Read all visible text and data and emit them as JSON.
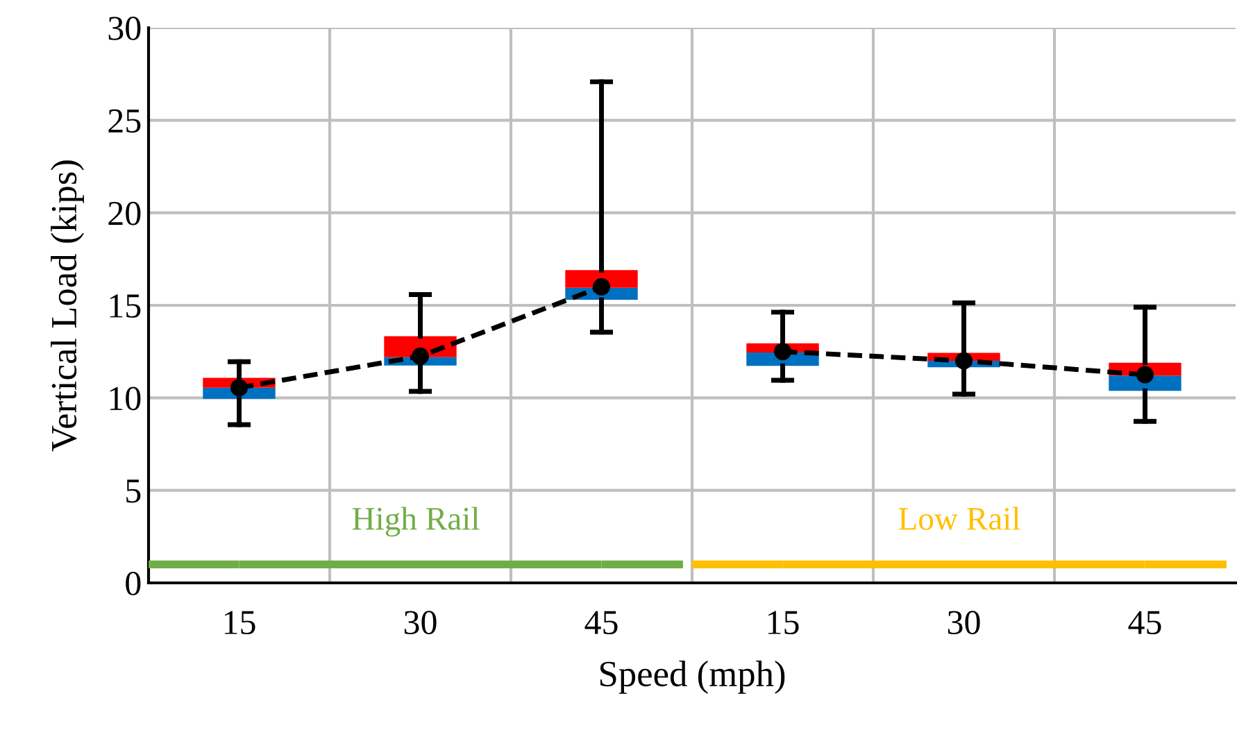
{
  "chart_data": {
    "type": "box",
    "xlabel": "Speed (mph)",
    "ylabel": "Vertical Load (kips)",
    "categories": [
      "15",
      "30",
      "45",
      "15",
      "30",
      "45"
    ],
    "boxes": [
      {
        "low": 8.55,
        "q1": 9.95,
        "median": 10.55,
        "q3": 11.08,
        "high": 11.95
      },
      {
        "low": 10.35,
        "q1": 11.75,
        "median": 12.2,
        "q3": 13.33,
        "high": 15.58
      },
      {
        "low": 13.55,
        "q1": 15.3,
        "median": 15.95,
        "q3": 16.9,
        "high": 27.08
      },
      {
        "low": 10.95,
        "q1": 11.73,
        "median": 12.45,
        "q3": 12.95,
        "high": 14.63
      },
      {
        "low": 10.2,
        "q1": 11.65,
        "median": 12.0,
        "q3": 12.43,
        "high": 15.13
      },
      {
        "low": 8.73,
        "q1": 10.38,
        "median": 11.2,
        "q3": 11.9,
        "high": 14.9
      }
    ],
    "colors": [
      "#0070c0",
      "#0070c0",
      "#0070c0",
      "#0070c0",
      "#0070c0",
      "#0070c0"
    ],
    "color": "#ff0000",
    "series": [
      {
        "type": "line",
        "color": "#000000",
        "line_style": "dashed",
        "marker": "circle",
        "values": [
          10.55,
          12.25,
          16.0,
          null,
          null,
          null
        ]
      },
      {
        "type": "line",
        "color": "#000000",
        "line_style": "dashed",
        "marker": "circle",
        "values": [
          null,
          null,
          null,
          12.5,
          12.0,
          11.25
        ]
      },
      {
        "type": "line",
        "name": "High Rail",
        "color": "#70ad47",
        "line_style": "solid",
        "marker": "none",
        "values": [
          1,
          1,
          1,
          null,
          null,
          null
        ]
      },
      {
        "type": "line",
        "name": "Low Rail",
        "color": "#ffc000",
        "line_style": "solid",
        "marker": "none",
        "values": [
          null,
          null,
          null,
          1,
          1,
          1
        ]
      }
    ],
    "ylim": [
      0,
      30
    ],
    "yticks": [
      0,
      5,
      10,
      15,
      20,
      25,
      30
    ],
    "grid": true
  }
}
